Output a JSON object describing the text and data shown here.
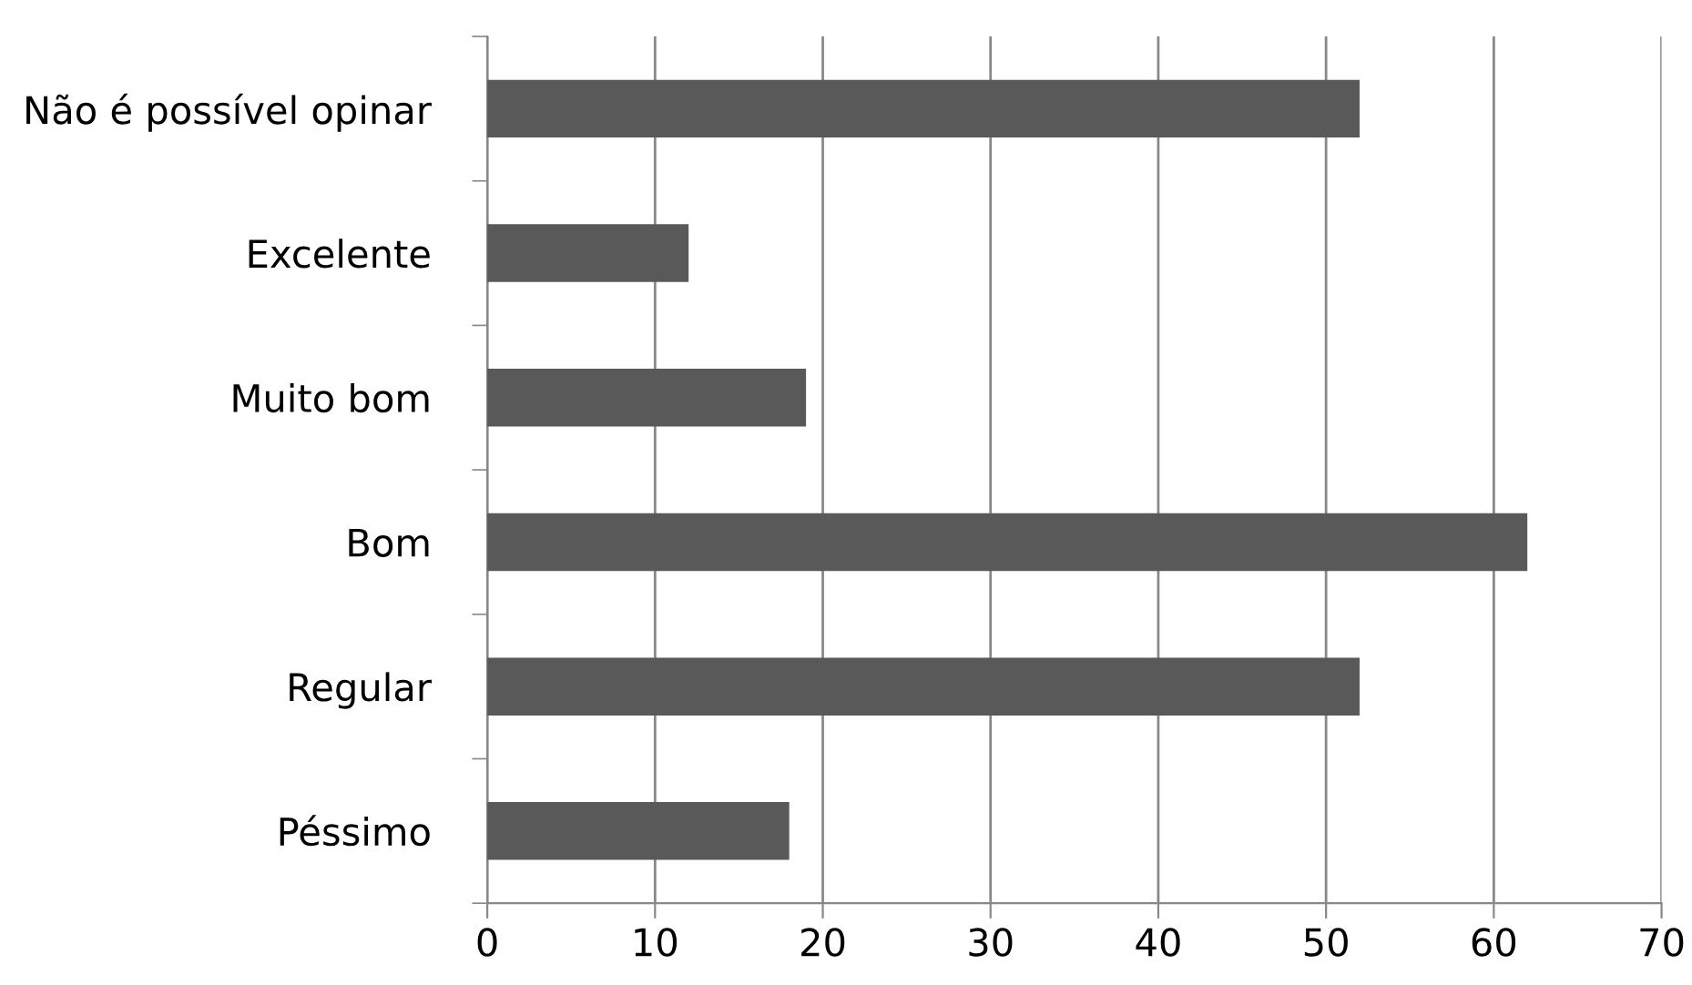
{
  "chart_data": {
    "type": "bar",
    "orientation": "horizontal",
    "categories": [
      "Não é possível opinar",
      "Excelente",
      "Muito bom",
      "Bom",
      "Regular",
      "Péssimo"
    ],
    "values": [
      52,
      12,
      19,
      62,
      52,
      18
    ],
    "color": "#595959",
    "xlim": [
      0,
      70
    ],
    "xticks": [
      0,
      10,
      20,
      30,
      40,
      50,
      60,
      70
    ],
    "grid": "x",
    "legend": false
  }
}
